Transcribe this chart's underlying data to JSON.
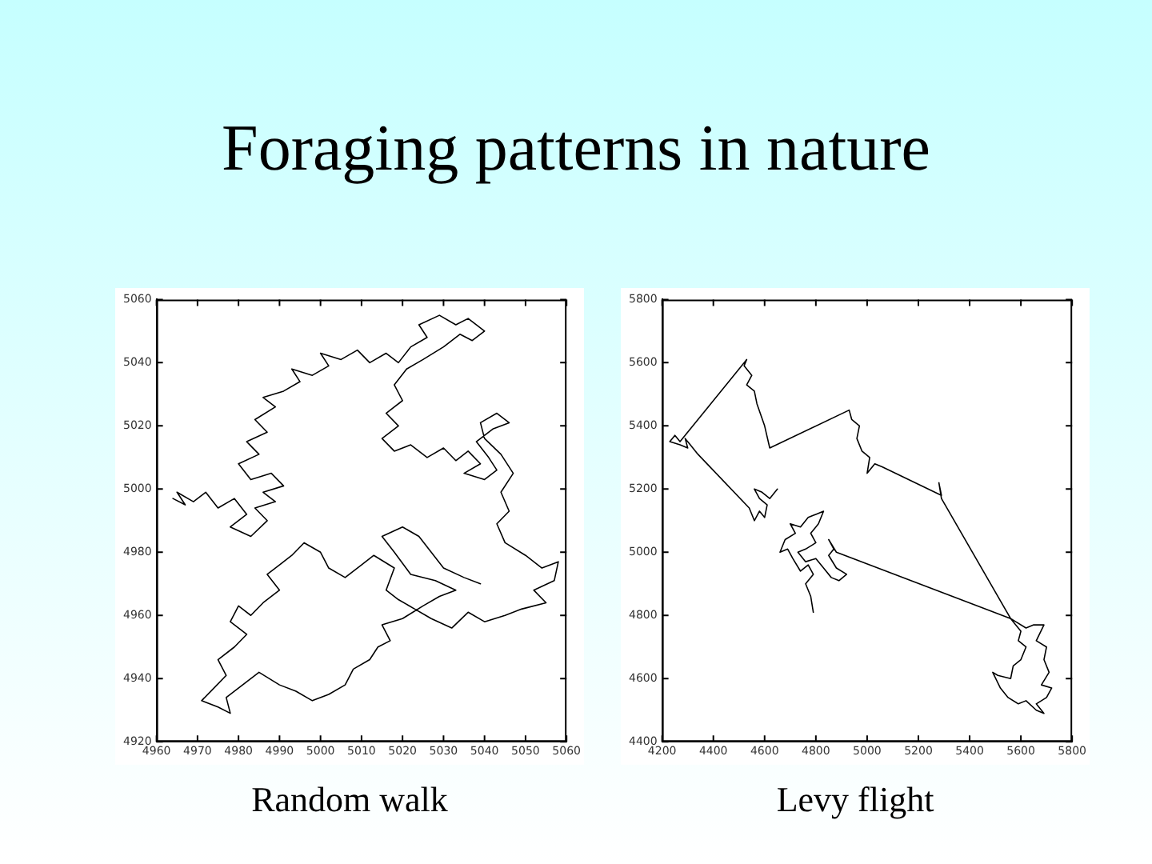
{
  "chart_data": [
    {
      "type": "line",
      "title": "Foraging patterns in nature",
      "xlabel": "Random walk",
      "xlim": [
        4960,
        5060
      ],
      "xticks": [
        4960,
        4970,
        4980,
        4990,
        5000,
        5010,
        5020,
        5030,
        5040,
        5050,
        5060
      ],
      "ylim": [
        4920,
        5060
      ],
      "yticks": [
        4920,
        4940,
        4960,
        4980,
        5000,
        5020,
        5040,
        5060
      ],
      "series": [
        {
          "color": "#000000",
          "x": [
            4964,
            4967,
            4965,
            4969,
            4972,
            4975,
            4979,
            4982,
            4978,
            4983,
            4987,
            4984,
            4989,
            4986,
            4991,
            4988,
            4983,
            4980,
            4985,
            4982,
            4987,
            4984,
            4989,
            4986,
            4991,
            4995,
            4993,
            4998,
            5002,
            5000,
            5005,
            5009,
            5012,
            5016,
            5019,
            5022,
            5026,
            5024,
            5029,
            5033,
            5036,
            5040,
            5037,
            5034,
            5030,
            5025,
            5021,
            5018,
            5020,
            5016,
            5019,
            5015,
            5018,
            5022,
            5026,
            5030,
            5033,
            5036,
            5039,
            5035,
            5040,
            5043,
            5041,
            5038,
            5042,
            5046,
            5043,
            5039,
            5040,
            5044,
            5047,
            5044,
            5046,
            5043,
            5045,
            5050,
            5054,
            5058,
            5057,
            5052,
            5055,
            5049,
            5045,
            5040,
            5036,
            5032,
            5027,
            5023,
            5019,
            5016,
            5018,
            5013,
            5010,
            5006,
            5002,
            5000,
            4996,
            4993,
            4990,
            4987,
            4990,
            4986,
            4983,
            4980,
            4978,
            4982,
            4979,
            4975,
            4977,
            4974,
            4971,
            4975,
            4978,
            4977,
            4981,
            4985,
            4990,
            4994,
            4998,
            5002,
            5006,
            5008,
            5012,
            5014,
            5017,
            5015,
            5020,
            5025,
            5029,
            5033,
            5028,
            5022,
            5018,
            5015,
            5020,
            5024,
            5027,
            5030,
            5035,
            5039
          ],
          "values": [
            4997,
            4995,
            4999,
            4996,
            4999,
            4994,
            4997,
            4992,
            4988,
            4985,
            4990,
            4994,
            4996,
            4999,
            5001,
            5005,
            5003,
            5008,
            5011,
            5015,
            5018,
            5022,
            5026,
            5029,
            5031,
            5034,
            5038,
            5036,
            5039,
            5043,
            5041,
            5044,
            5040,
            5043,
            5040,
            5045,
            5048,
            5052,
            5055,
            5052,
            5054,
            5050,
            5047,
            5049,
            5045,
            5041,
            5038,
            5033,
            5028,
            5024,
            5020,
            5016,
            5012,
            5014,
            5010,
            5013,
            5009,
            5012,
            5008,
            5005,
            5003,
            5006,
            5010,
            5015,
            5019,
            5021,
            5024,
            5021,
            5016,
            5011,
            5005,
            4999,
            4993,
            4989,
            4983,
            4979,
            4975,
            4977,
            4971,
            4968,
            4964,
            4962,
            4960,
            4958,
            4961,
            4956,
            4959,
            4962,
            4965,
            4968,
            4975,
            4979,
            4976,
            4972,
            4975,
            4980,
            4983,
            4979,
            4976,
            4973,
            4968,
            4964,
            4960,
            4963,
            4958,
            4954,
            4950,
            4946,
            4941,
            4937,
            4933,
            4931,
            4929,
            4934,
            4938,
            4942,
            4938,
            4936,
            4933,
            4935,
            4938,
            4943,
            4946,
            4950,
            4952,
            4957,
            4959,
            4963,
            4966,
            4968,
            4971,
            4973,
            4980,
            4985,
            4988,
            4985,
            4980,
            4975,
            4972,
            4970
          ]
        }
      ]
    },
    {
      "type": "line",
      "xlabel": "Levy flight",
      "xlim": [
        4200,
        5800
      ],
      "xticks": [
        4200,
        4400,
        4600,
        4800,
        5000,
        5200,
        5400,
        5600,
        5800
      ],
      "ylim": [
        4400,
        5800
      ],
      "yticks": [
        4400,
        4600,
        4800,
        5000,
        5200,
        5400,
        5600,
        5800
      ],
      "series": [
        {
          "color": "#000000",
          "x": [
            4790,
            4780,
            4760,
            4790,
            4770,
            4740,
            4710,
            4690,
            4660,
            4680,
            4720,
            4700,
            4740,
            4770,
            4800,
            4830,
            4810,
            4780,
            4800,
            4760,
            4730,
            4760,
            4800,
            4830,
            4860,
            4890,
            4920,
            4880,
            4850,
            4870,
            4850,
            4880,
            5560,
            5600,
            5590,
            5620,
            5600,
            5570,
            5560,
            5510,
            5490,
            5520,
            5550,
            5590,
            5620,
            5660,
            5690,
            5660,
            5700,
            5720,
            5680,
            5710,
            5690,
            5700,
            5660,
            5690,
            5650,
            5620,
            5580,
            5560,
            5290,
            5280,
            5290,
            5060,
            5030,
            5000,
            5010,
            4980,
            4960,
            4970,
            4940,
            4930,
            4620,
            4600,
            4570,
            4560,
            4530,
            4550,
            4520,
            4530,
            4270,
            4250,
            4230,
            4270,
            4300,
            4290,
            4310,
            4340,
            4540,
            4560,
            4580,
            4600,
            4610,
            4580,
            4560,
            4590,
            4620,
            4650
          ],
          "values": [
            4810,
            4860,
            4900,
            4930,
            4960,
            4940,
            4980,
            5010,
            5000,
            5040,
            5060,
            5090,
            5080,
            5110,
            5120,
            5130,
            5090,
            5060,
            5030,
            5010,
            5000,
            4970,
            4980,
            4950,
            4920,
            4910,
            4930,
            4950,
            4990,
            5010,
            5040,
            5000,
            4790,
            4750,
            4720,
            4700,
            4660,
            4640,
            4600,
            4610,
            4620,
            4570,
            4540,
            4520,
            4530,
            4500,
            4490,
            4520,
            4540,
            4570,
            4580,
            4620,
            4660,
            4700,
            4720,
            4770,
            4770,
            4760,
            4780,
            4790,
            5170,
            5220,
            5180,
            5270,
            5280,
            5250,
            5300,
            5320,
            5360,
            5400,
            5420,
            5450,
            5330,
            5400,
            5470,
            5510,
            5530,
            5560,
            5590,
            5610,
            5350,
            5370,
            5350,
            5340,
            5330,
            5360,
            5340,
            5310,
            5140,
            5100,
            5130,
            5110,
            5150,
            5170,
            5200,
            5190,
            5170,
            5200
          ]
        }
      ]
    }
  ]
}
